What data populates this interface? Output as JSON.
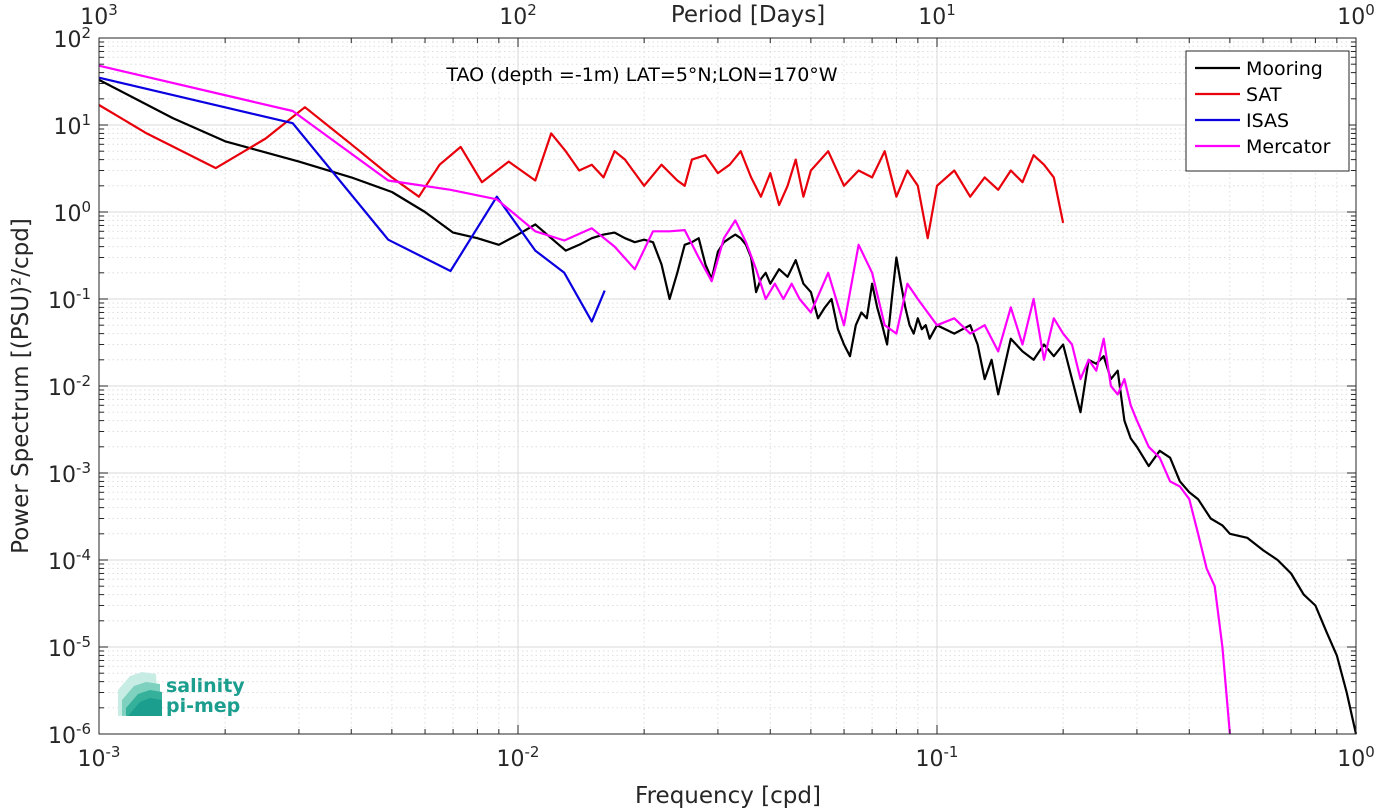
{
  "chart_data": {
    "type": "line",
    "title": "TAO (depth =-1m) LAT=5°N;LON=170°W",
    "xlabel": "Frequency [cpd]",
    "ylabel": "Power Spectrum [(PSU)²/cpd]",
    "top_xlabel": "Period [Days]",
    "xscale": "log",
    "yscale": "log",
    "xlim": [
      0.001,
      1
    ],
    "ylim": [
      1e-06,
      100
    ],
    "grid": true,
    "legend_position": "top-right",
    "x_ticks": [
      {
        "base": "10",
        "exp": "-3"
      },
      {
        "base": "10",
        "exp": "-2"
      },
      {
        "base": "10",
        "exp": "-1"
      },
      {
        "base": "10",
        "exp": "0"
      }
    ],
    "y_ticks": [
      {
        "base": "10",
        "exp": "-6"
      },
      {
        "base": "10",
        "exp": "-5"
      },
      {
        "base": "10",
        "exp": "-4"
      },
      {
        "base": "10",
        "exp": "-3"
      },
      {
        "base": "10",
        "exp": "-2"
      },
      {
        "base": "10",
        "exp": "-1"
      },
      {
        "base": "10",
        "exp": "0"
      },
      {
        "base": "10",
        "exp": "1"
      },
      {
        "base": "10",
        "exp": "2"
      }
    ],
    "top_ticks": [
      {
        "base": "10",
        "exp": "3"
      },
      {
        "base": "10",
        "exp": "2"
      },
      {
        "base": "10",
        "exp": "1"
      },
      {
        "base": "10",
        "exp": "0"
      }
    ],
    "series": [
      {
        "name": "Mooring",
        "color": "#000000",
        "points": [
          [
            0.001,
            33
          ],
          [
            0.0015,
            12
          ],
          [
            0.002,
            6.5
          ],
          [
            0.003,
            3.8
          ],
          [
            0.004,
            2.5
          ],
          [
            0.005,
            1.7
          ],
          [
            0.006,
            1.0
          ],
          [
            0.007,
            0.58
          ],
          [
            0.008,
            0.5
          ],
          [
            0.009,
            0.42
          ],
          [
            0.01,
            0.55
          ],
          [
            0.011,
            0.72
          ],
          [
            0.012,
            0.5
          ],
          [
            0.013,
            0.36
          ],
          [
            0.014,
            0.42
          ],
          [
            0.015,
            0.5
          ],
          [
            0.016,
            0.55
          ],
          [
            0.017,
            0.58
          ],
          [
            0.018,
            0.5
          ],
          [
            0.019,
            0.45
          ],
          [
            0.02,
            0.48
          ],
          [
            0.021,
            0.45
          ],
          [
            0.022,
            0.25
          ],
          [
            0.023,
            0.1
          ],
          [
            0.024,
            0.2
          ],
          [
            0.025,
            0.42
          ],
          [
            0.026,
            0.45
          ],
          [
            0.027,
            0.5
          ],
          [
            0.028,
            0.25
          ],
          [
            0.029,
            0.17
          ],
          [
            0.03,
            0.35
          ],
          [
            0.031,
            0.45
          ],
          [
            0.032,
            0.5
          ],
          [
            0.033,
            0.55
          ],
          [
            0.034,
            0.5
          ],
          [
            0.035,
            0.42
          ],
          [
            0.036,
            0.3
          ],
          [
            0.037,
            0.12
          ],
          [
            0.038,
            0.17
          ],
          [
            0.039,
            0.2
          ],
          [
            0.04,
            0.15
          ],
          [
            0.042,
            0.22
          ],
          [
            0.044,
            0.18
          ],
          [
            0.046,
            0.28
          ],
          [
            0.048,
            0.15
          ],
          [
            0.05,
            0.12
          ],
          [
            0.052,
            0.06
          ],
          [
            0.054,
            0.08
          ],
          [
            0.056,
            0.1
          ],
          [
            0.058,
            0.045
          ],
          [
            0.06,
            0.03
          ],
          [
            0.062,
            0.022
          ],
          [
            0.064,
            0.05
          ],
          [
            0.066,
            0.07
          ],
          [
            0.068,
            0.06
          ],
          [
            0.07,
            0.15
          ],
          [
            0.072,
            0.08
          ],
          [
            0.074,
            0.05
          ],
          [
            0.076,
            0.03
          ],
          [
            0.078,
            0.1
          ],
          [
            0.08,
            0.3
          ],
          [
            0.082,
            0.15
          ],
          [
            0.084,
            0.08
          ],
          [
            0.086,
            0.05
          ],
          [
            0.088,
            0.04
          ],
          [
            0.09,
            0.06
          ],
          [
            0.092,
            0.045
          ],
          [
            0.094,
            0.05
          ],
          [
            0.096,
            0.035
          ],
          [
            0.1,
            0.05
          ],
          [
            0.11,
            0.04
          ],
          [
            0.12,
            0.05
          ],
          [
            0.125,
            0.03
          ],
          [
            0.13,
            0.012
          ],
          [
            0.135,
            0.02
          ],
          [
            0.14,
            0.008
          ],
          [
            0.15,
            0.035
          ],
          [
            0.16,
            0.025
          ],
          [
            0.17,
            0.02
          ],
          [
            0.18,
            0.03
          ],
          [
            0.19,
            0.022
          ],
          [
            0.2,
            0.03
          ],
          [
            0.21,
            0.012
          ],
          [
            0.22,
            0.005
          ],
          [
            0.23,
            0.02
          ],
          [
            0.24,
            0.018
          ],
          [
            0.25,
            0.022
          ],
          [
            0.26,
            0.012
          ],
          [
            0.27,
            0.015
          ],
          [
            0.28,
            0.004
          ],
          [
            0.29,
            0.0025
          ],
          [
            0.3,
            0.002
          ],
          [
            0.32,
            0.0012
          ],
          [
            0.34,
            0.0018
          ],
          [
            0.36,
            0.0015
          ],
          [
            0.38,
            0.0008
          ],
          [
            0.4,
            0.0006
          ],
          [
            0.42,
            0.0005
          ],
          [
            0.45,
            0.0003
          ],
          [
            0.48,
            0.00025
          ],
          [
            0.5,
            0.0002
          ],
          [
            0.55,
            0.00018
          ],
          [
            0.6,
            0.00013
          ],
          [
            0.65,
            0.0001
          ],
          [
            0.7,
            7e-05
          ],
          [
            0.75,
            4e-05
          ],
          [
            0.8,
            3e-05
          ],
          [
            0.85,
            1.5e-05
          ],
          [
            0.9,
            8e-06
          ],
          [
            0.95,
            3e-06
          ],
          [
            1.0,
            1e-06
          ]
        ]
      },
      {
        "name": "SAT",
        "color": "#e8000b",
        "points": [
          [
            0.001,
            17
          ],
          [
            0.0013,
            8
          ],
          [
            0.0019,
            3.2
          ],
          [
            0.0025,
            7
          ],
          [
            0.0031,
            16
          ],
          [
            0.004,
            6
          ],
          [
            0.005,
            2.5
          ],
          [
            0.0058,
            1.5
          ],
          [
            0.0065,
            3.5
          ],
          [
            0.0073,
            5.6
          ],
          [
            0.0082,
            2.2
          ],
          [
            0.0095,
            3.8
          ],
          [
            0.011,
            2.3
          ],
          [
            0.012,
            8
          ],
          [
            0.013,
            5
          ],
          [
            0.014,
            3
          ],
          [
            0.015,
            3.5
          ],
          [
            0.016,
            2.5
          ],
          [
            0.017,
            5
          ],
          [
            0.018,
            4
          ],
          [
            0.02,
            2
          ],
          [
            0.022,
            3.5
          ],
          [
            0.024,
            2.3
          ],
          [
            0.025,
            2
          ],
          [
            0.026,
            4
          ],
          [
            0.028,
            4.5
          ],
          [
            0.03,
            2.8
          ],
          [
            0.032,
            3.5
          ],
          [
            0.034,
            5
          ],
          [
            0.036,
            2.5
          ],
          [
            0.038,
            1.5
          ],
          [
            0.04,
            2.8
          ],
          [
            0.042,
            1.2
          ],
          [
            0.044,
            2
          ],
          [
            0.046,
            4
          ],
          [
            0.048,
            1.5
          ],
          [
            0.05,
            3
          ],
          [
            0.055,
            5
          ],
          [
            0.06,
            2
          ],
          [
            0.065,
            3
          ],
          [
            0.07,
            2.5
          ],
          [
            0.075,
            5
          ],
          [
            0.08,
            1.5
          ],
          [
            0.085,
            3
          ],
          [
            0.09,
            2
          ],
          [
            0.095,
            0.5
          ],
          [
            0.1,
            2
          ],
          [
            0.11,
            3
          ],
          [
            0.12,
            1.5
          ],
          [
            0.13,
            2.5
          ],
          [
            0.14,
            1.8
          ],
          [
            0.15,
            3
          ],
          [
            0.16,
            2.2
          ],
          [
            0.17,
            4.5
          ],
          [
            0.18,
            3.5
          ],
          [
            0.19,
            2.5
          ],
          [
            0.2,
            0.75
          ]
        ]
      },
      {
        "name": "ISAS",
        "color": "#0a00e0",
        "points": [
          [
            0.001,
            35
          ],
          [
            0.0029,
            10.5
          ],
          [
            0.0049,
            0.48
          ],
          [
            0.0069,
            0.21
          ],
          [
            0.0089,
            1.5
          ],
          [
            0.011,
            0.36
          ],
          [
            0.0129,
            0.2
          ],
          [
            0.015,
            0.055
          ],
          [
            0.0161,
            0.125
          ]
        ]
      },
      {
        "name": "Mercator",
        "color": "#ff00ff",
        "points": [
          [
            0.001,
            48
          ],
          [
            0.0029,
            14.5
          ],
          [
            0.0049,
            2.3
          ],
          [
            0.0069,
            1.8
          ],
          [
            0.0089,
            1.4
          ],
          [
            0.011,
            0.6
          ],
          [
            0.0129,
            0.47
          ],
          [
            0.015,
            0.65
          ],
          [
            0.017,
            0.4
          ],
          [
            0.019,
            0.22
          ],
          [
            0.021,
            0.6
          ],
          [
            0.023,
            0.6
          ],
          [
            0.025,
            0.62
          ],
          [
            0.027,
            0.3
          ],
          [
            0.029,
            0.16
          ],
          [
            0.031,
            0.5
          ],
          [
            0.033,
            0.8
          ],
          [
            0.035,
            0.45
          ],
          [
            0.037,
            0.22
          ],
          [
            0.039,
            0.1
          ],
          [
            0.041,
            0.15
          ],
          [
            0.043,
            0.1
          ],
          [
            0.045,
            0.15
          ],
          [
            0.047,
            0.1
          ],
          [
            0.05,
            0.07
          ],
          [
            0.055,
            0.2
          ],
          [
            0.06,
            0.05
          ],
          [
            0.065,
            0.42
          ],
          [
            0.07,
            0.2
          ],
          [
            0.075,
            0.05
          ],
          [
            0.08,
            0.04
          ],
          [
            0.085,
            0.15
          ],
          [
            0.09,
            0.1
          ],
          [
            0.1,
            0.05
          ],
          [
            0.11,
            0.06
          ],
          [
            0.12,
            0.04
          ],
          [
            0.13,
            0.05
          ],
          [
            0.14,
            0.025
          ],
          [
            0.15,
            0.08
          ],
          [
            0.16,
            0.03
          ],
          [
            0.17,
            0.1
          ],
          [
            0.18,
            0.02
          ],
          [
            0.19,
            0.06
          ],
          [
            0.2,
            0.04
          ],
          [
            0.21,
            0.03
          ],
          [
            0.22,
            0.012
          ],
          [
            0.23,
            0.02
          ],
          [
            0.24,
            0.015
          ],
          [
            0.25,
            0.035
          ],
          [
            0.26,
            0.01
          ],
          [
            0.27,
            0.008
          ],
          [
            0.28,
            0.012
          ],
          [
            0.29,
            0.006
          ],
          [
            0.3,
            0.004
          ],
          [
            0.32,
            0.002
          ],
          [
            0.34,
            0.0015
          ],
          [
            0.36,
            0.0008
          ],
          [
            0.38,
            0.0007
          ],
          [
            0.4,
            0.0005
          ],
          [
            0.42,
            0.0002
          ],
          [
            0.44,
            8e-05
          ],
          [
            0.46,
            5e-05
          ],
          [
            0.48,
            1e-05
          ],
          [
            0.5,
            1e-06
          ]
        ]
      }
    ]
  },
  "logo": {
    "line1": "salinity",
    "line2": "pi-mep",
    "color": "#1b9e8e"
  }
}
